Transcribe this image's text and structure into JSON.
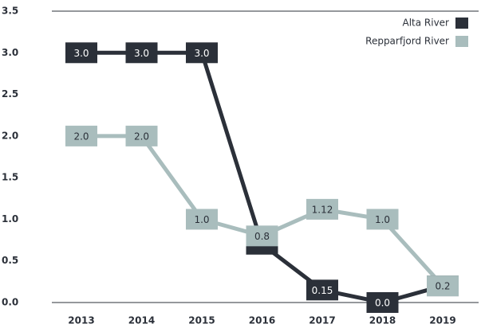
{
  "chart_data": {
    "type": "line",
    "categories": [
      "2013",
      "2014",
      "2015",
      "2016",
      "2017",
      "2018",
      "2019"
    ],
    "series": [
      {
        "name": "Alta River",
        "color": "#2b3039",
        "values": [
          3.0,
          3.0,
          3.0,
          0.7,
          0.15,
          0.0,
          0.2
        ],
        "value_labels": [
          "3.0",
          "3.0",
          "3.0",
          null,
          "0.15",
          "0.0",
          null
        ]
      },
      {
        "name": "Repparfjord River",
        "color": "#a9bdbd",
        "values": [
          2.0,
          2.0,
          1.0,
          0.8,
          1.12,
          1.0,
          0.2
        ],
        "value_labels": [
          "2.0",
          "2.0",
          "1.0",
          "0.8",
          "1.12",
          "1.0",
          "0.2"
        ]
      }
    ],
    "ylim": [
      0,
      3.5
    ],
    "yticks": [
      {
        "value": 0,
        "label": "0.0"
      },
      {
        "value": 0.5,
        "label": "0.5"
      },
      {
        "value": 1,
        "label": "1.0"
      },
      {
        "value": 1.5,
        "label": "1.5"
      },
      {
        "value": 2,
        "label": "2.0"
      },
      {
        "value": 2.5,
        "label": "2.5"
      },
      {
        "value": 3,
        "label": "3.0"
      },
      {
        "value": 3.5,
        "label": "3.5"
      }
    ],
    "legend": "top-right"
  }
}
